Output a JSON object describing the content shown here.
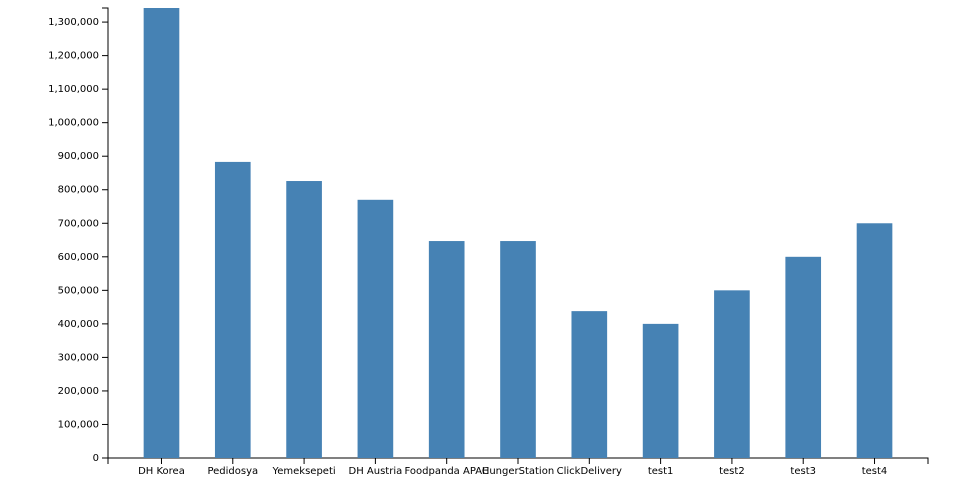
{
  "chart_data": {
    "type": "bar",
    "categories": [
      "DH Korea",
      "Pedidosya",
      "Yemeksepeti",
      "DH Austria",
      "Foodpanda APAC",
      "HungerStation",
      "ClickDelivery",
      "test1",
      "test2",
      "test3",
      "test4"
    ],
    "values": [
      1342000,
      883000,
      826000,
      770000,
      647000,
      647000,
      438000,
      400000,
      500000,
      600000,
      700000
    ],
    "color": "#4682b4",
    "ylim": [
      0,
      1342000
    ],
    "yticks": [
      0,
      {
        "value": 100000,
        "label": "100,000"
      },
      {
        "value": 200000,
        "label": "200,000"
      },
      {
        "value": 300000,
        "label": "300,000"
      },
      {
        "value": 400000,
        "label": "400,000"
      },
      {
        "value": 500000,
        "label": "500,000"
      },
      {
        "value": 600000,
        "label": "600,000"
      },
      {
        "value": 700000,
        "label": "700,000"
      },
      {
        "value": 800000,
        "label": "800,000"
      },
      {
        "value": 900000,
        "label": "900,000"
      },
      {
        "value": 1000000,
        "label": "1,000,000"
      },
      {
        "value": 1100000,
        "label": "1,100,000"
      },
      {
        "value": 1200000,
        "label": "1,200,000"
      },
      {
        "value": 1300000,
        "label": "1,300,000"
      }
    ]
  }
}
